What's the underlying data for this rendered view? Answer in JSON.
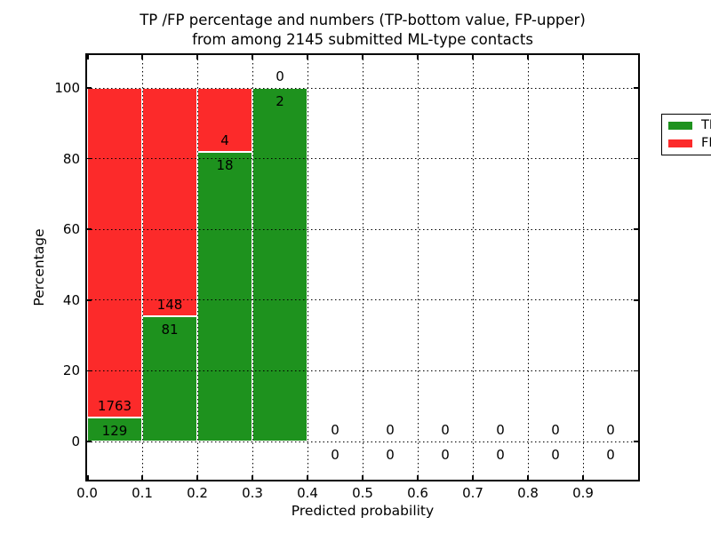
{
  "figure": {
    "title_line1": "TP /FP percentage and numbers (TP-bottom value, FP-upper)",
    "title_line2": "from among 2145 submitted ML-type contacts"
  },
  "chart_data": {
    "type": "bar",
    "stacked": true,
    "title": "TP /FP percentage and numbers (TP-bottom value, FP-upper) from among 2145 submitted ML-type contacts",
    "xlabel": "Predicted probability",
    "ylabel": "Percentage",
    "total_contacts": 2145,
    "bin_width": 0.1,
    "bin_left_edges": [
      0.0,
      0.1,
      0.2,
      0.3,
      0.4,
      0.5,
      0.6,
      0.7,
      0.8,
      0.9
    ],
    "series": [
      {
        "name": "TP",
        "color": "#1e921e",
        "counts": [
          129,
          81,
          18,
          2,
          0,
          0,
          0,
          0,
          0,
          0
        ]
      },
      {
        "name": "FP",
        "color": "#fc2a2a",
        "counts": [
          1763,
          148,
          4,
          0,
          0,
          0,
          0,
          0,
          0,
          0
        ]
      }
    ],
    "bar_edge_color": "#ffffff",
    "xtick_labels": [
      "0.0",
      "0.1",
      "0.2",
      "0.3",
      "0.4",
      "0.5",
      "0.6",
      "0.7",
      "0.8",
      "0.9"
    ],
    "ytick_values": [
      0,
      20,
      40,
      60,
      80,
      100
    ],
    "xlim": [
      0.0,
      1.0
    ],
    "ylim": [
      -10.8,
      109.3
    ],
    "grid": true,
    "grid_style": "dotted",
    "legend": {
      "position": "upper right",
      "items": [
        {
          "label": "TP",
          "color": "#1e921e"
        },
        {
          "label": "FP",
          "color": "#fc2a2a"
        }
      ]
    }
  }
}
